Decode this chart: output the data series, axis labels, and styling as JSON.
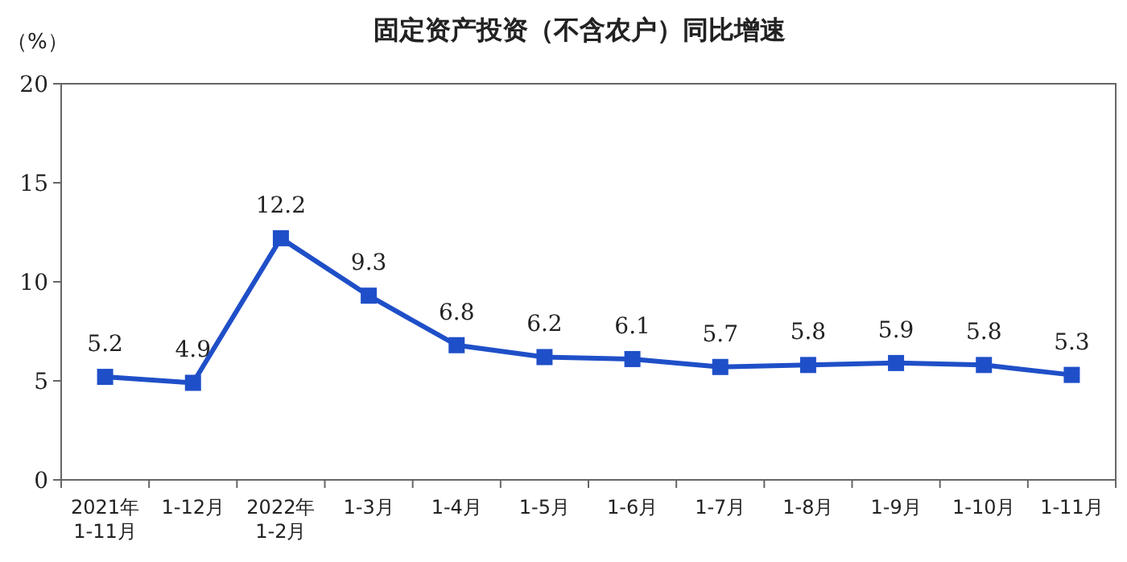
{
  "chart_data": {
    "type": "line",
    "title": "固定资产投资（不含农户）同比增速",
    "ylabel": "（%）",
    "categories": [
      "2021年\n1-11月",
      "1-12月",
      "2022年\n1-2月",
      "1-3月",
      "1-4月",
      "1-5月",
      "1-6月",
      "1-7月",
      "1-8月",
      "1-9月",
      "1-10月",
      "1-11月"
    ],
    "series": [
      {
        "color": "#1f4fc8",
        "values": [
          5.2,
          4.9,
          12.2,
          9.3,
          6.8,
          6.2,
          6.1,
          5.7,
          5.8,
          5.9,
          5.8,
          5.3
        ]
      }
    ],
    "ylim": [
      0,
      20
    ],
    "yticks": [
      0,
      5,
      10,
      15,
      20
    ],
    "marker": "square",
    "line_style": "solid",
    "data_labels": true
  }
}
